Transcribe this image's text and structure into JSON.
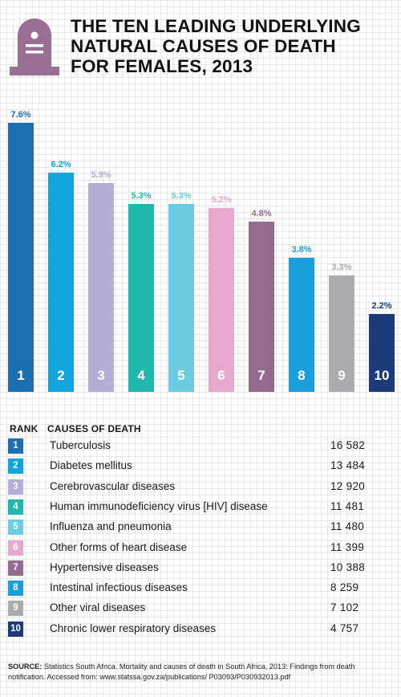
{
  "title_lines": [
    "THE TEN LEADING UNDERLYING",
    "NATURAL CAUSES OF DEATH",
    "FOR FEMALES, 2013"
  ],
  "icon": {
    "name": "tombstone-icon",
    "color": "#9b6f93"
  },
  "chart_data": {
    "type": "bar",
    "title": "THE TEN LEADING UNDERLYING NATURAL CAUSES OF DEATH FOR FEMALES, 2013",
    "categories": [
      "1",
      "2",
      "3",
      "4",
      "5",
      "6",
      "7",
      "8",
      "9",
      "10"
    ],
    "values": [
      7.6,
      6.2,
      5.9,
      5.3,
      5.3,
      5.2,
      4.8,
      3.8,
      3.3,
      2.2
    ],
    "value_labels": [
      "7.6%",
      "6.2%",
      "5.9%",
      "5.3%",
      "5.3%",
      "5.2%",
      "4.8%",
      "3.8%",
      "3.3%",
      "2.2%"
    ],
    "colors": [
      "#1d6fb0",
      "#12a5dc",
      "#b3aed6",
      "#20b7af",
      "#6bcbe2",
      "#e6a9cd",
      "#946b8f",
      "#1b9fdc",
      "#a9abae",
      "#1c3a7a"
    ],
    "ylim": [
      0,
      7.6
    ],
    "grid": false,
    "legend": "none"
  },
  "table": {
    "rank_header": "RANK",
    "cause_header": "CAUSES OF DEATH",
    "rows": [
      {
        "rank": "1",
        "cause": "Tuberculosis",
        "count": "16 582"
      },
      {
        "rank": "2",
        "cause": "Diabetes mellitus",
        "count": "13 484"
      },
      {
        "rank": "3",
        "cause": "Cerebrovascular diseases",
        "count": "12 920"
      },
      {
        "rank": "4",
        "cause": "Human immunodeficiency virus [HIV] disease",
        "count": "11 481"
      },
      {
        "rank": "5",
        "cause": "Influenza and pneumonia",
        "count": "11 480"
      },
      {
        "rank": "6",
        "cause": "Other forms of heart disease",
        "count": "11 399"
      },
      {
        "rank": "7",
        "cause": "Hypertensive diseases",
        "count": "10 388"
      },
      {
        "rank": "8",
        "cause": "Intestinal infectious diseases",
        "count": "8 259"
      },
      {
        "rank": "9",
        "cause": "Other viral diseases",
        "count": "7 102"
      },
      {
        "rank": "10",
        "cause": "Chronic lower respiratory diseases",
        "count": "4 757"
      }
    ]
  },
  "source": {
    "label": "SOURCE:",
    "text": " Statistics South Africa. Mortality and causes of death in South Africa, 2013: Findings from death notification. Accessed from: www.statssa.gov.za/publications/ P03093/P030932013.pdf"
  }
}
